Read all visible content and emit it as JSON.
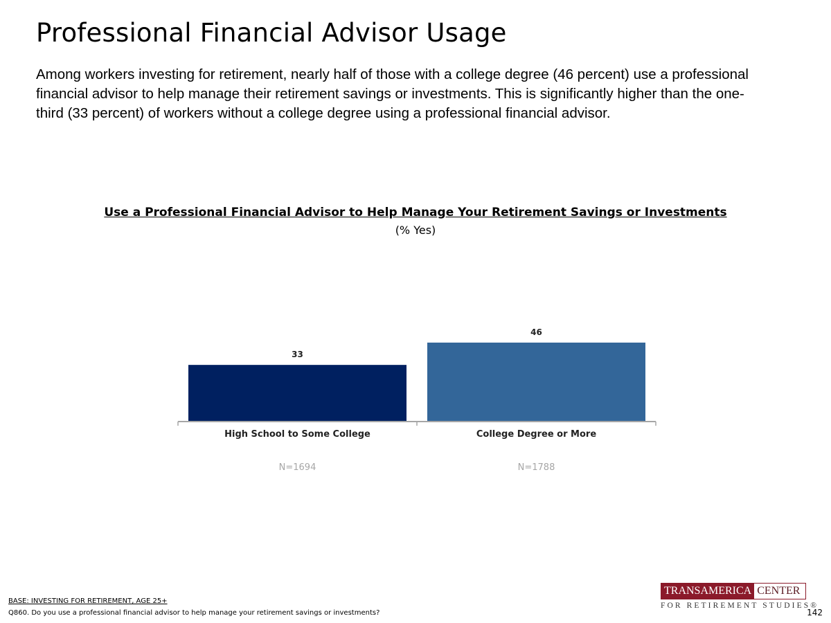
{
  "slide": {
    "title": "Professional Financial Advisor Usage",
    "summary": "Among workers investing for retirement, nearly half of those with a college degree (46 percent) use a professional financial advisor to help manage their retirement savings or investments. This is significantly higher than the one-third (33 percent) of workers without a college degree using a professional financial advisor."
  },
  "chart_data": {
    "type": "bar",
    "title": "Use a Professional Financial Advisor to Help Manage Your Retirement Savings or Investments",
    "subtitle": "(% Yes)",
    "categories": [
      "High School to Some College",
      "College Degree or More"
    ],
    "values": [
      33,
      46
    ],
    "sample_sizes": [
      "N=1694",
      "N=1788"
    ],
    "colors": [
      "#002060",
      "#336699"
    ],
    "ylim": [
      0,
      100
    ],
    "grid": false,
    "legend": "none"
  },
  "footer": {
    "base": "BASE: INVESTING FOR RETIREMENT, AGE 25+",
    "question": "Q860. Do you use a professional financial advisor to help manage your retirement savings or investments?",
    "page_number": "142"
  },
  "logo": {
    "left": "TRANSAMERICA",
    "right": "CENTER",
    "sub": "FOR RETIREMENT STUDIES®"
  }
}
